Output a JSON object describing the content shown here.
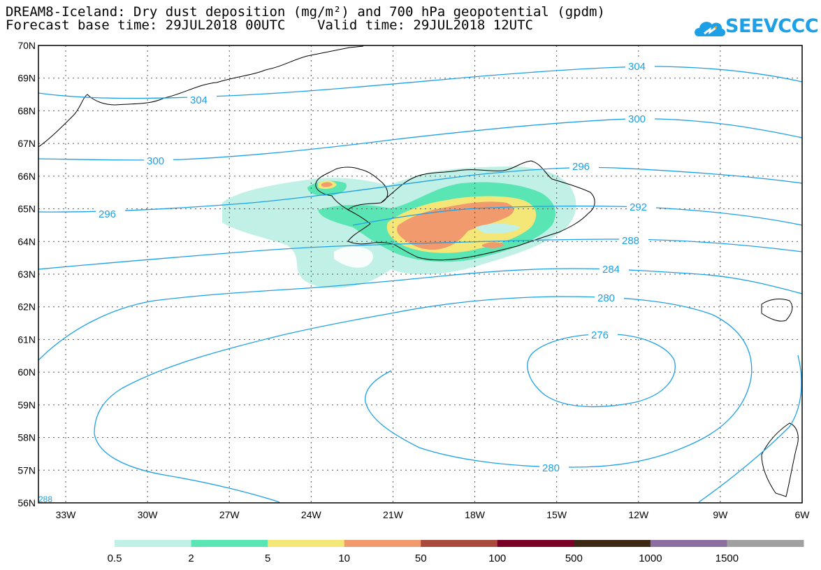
{
  "header": {
    "title_line1": "DREAM8-Iceland: Dry dust deposition (mg/m²) and 700 hPa geopotential (gpdm)",
    "title_line2": "Forecast base time: 29JUL2018 00UTC    Valid time: 29JUL2018 12UTC",
    "logo_text": "SEEVCCC"
  },
  "map": {
    "lat_labels": [
      "70N",
      "69N",
      "68N",
      "67N",
      "66N",
      "65N",
      "64N",
      "63N",
      "62N",
      "61N",
      "60N",
      "59N",
      "58N",
      "57N",
      "56N"
    ],
    "lon_labels": [
      "33W",
      "30W",
      "27W",
      "24W",
      "21W",
      "18W",
      "15W",
      "12W",
      "9W",
      "6W"
    ],
    "contour_labels": [
      "304",
      "304",
      "300",
      "300",
      "296",
      "296",
      "292",
      "288",
      "284",
      "280",
      "276",
      "280",
      "288"
    ],
    "geopotential_color": "#1ea0e6"
  },
  "legend": {
    "labels": [
      "0.5",
      "2",
      "5",
      "10",
      "50",
      "100",
      "500",
      "1000",
      "1500"
    ],
    "colors": [
      "#c0f0e6",
      "#5ae6b4",
      "#f5e678",
      "#f09a6e",
      "#aa4a3c",
      "#7a0028",
      "#3c2814",
      "#8c6ea0",
      "#a0a0a0"
    ]
  }
}
